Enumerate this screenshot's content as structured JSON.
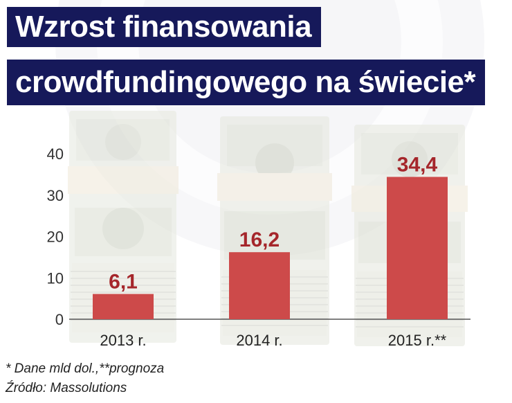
{
  "title": {
    "line1": "Wzrost finansowania",
    "line2": "crowdfundingowego na świecie*"
  },
  "colors": {
    "title_bg": "#16195a",
    "bar": "#cd4a4a",
    "data_label": "#a5262b",
    "axis": "#555555"
  },
  "chart_data": {
    "type": "bar",
    "categories": [
      "2013 r.",
      "2014 r.",
      "2015 r.**"
    ],
    "values": [
      6.1,
      16.2,
      34.4
    ],
    "value_labels": [
      "6,1",
      "16,2",
      "34,4"
    ],
    "yticks": [
      "0",
      "10",
      "20",
      "30",
      "40"
    ],
    "ylim": [
      0,
      40
    ],
    "title": "",
    "xlabel": "",
    "ylabel": "",
    "grid": false,
    "legend": "none"
  },
  "footnotes": {
    "note": "* Dane mld dol.,**prognoza",
    "source": "Źródło: Massolutions"
  }
}
